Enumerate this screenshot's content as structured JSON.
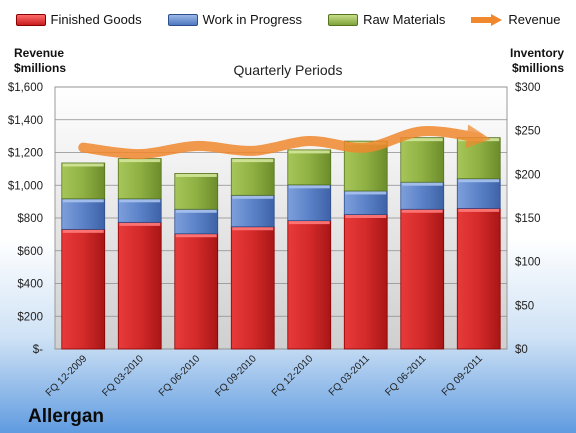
{
  "company": "Allergan",
  "legend": {
    "finished_goods": "Finished Goods",
    "wip": "Work in Progress",
    "raw_materials": "Raw Materials",
    "revenue": "Revenue"
  },
  "labels": {
    "left_line1": "Revenue",
    "left_line2": "$millions",
    "right_line1": "Inventory",
    "right_line2": "$millions",
    "title": "Quarterly Periods"
  },
  "colors": {
    "finished_goods": "#d42a2a",
    "wip": "#5b82c8",
    "raw_materials": "#8fb043",
    "revenue": "#f0882e"
  },
  "chart_data": {
    "type": "bar",
    "stacked": true,
    "categories": [
      "FQ 12-2009",
      "FQ 03-2010",
      "FQ 06-2010",
      "FQ 09-2010",
      "FQ 12-2010",
      "FQ 03-2011",
      "FQ 06-2011",
      "FQ 09-2011"
    ],
    "left_axis": {
      "ticks": [
        "$-",
        "$200",
        "$400",
        "$600",
        "$800",
        "$1,000",
        "$1,200",
        "$1,400",
        "$1,600"
      ],
      "ylim": [
        0,
        1600
      ]
    },
    "right_axis": {
      "ticks": [
        "$0",
        "$50",
        "$100",
        "$150",
        "$200",
        "$250",
        "$300"
      ],
      "ylim": [
        0,
        300
      ]
    },
    "series": [
      {
        "name": "Finished Goods",
        "axis": "right",
        "values": [
          137,
          145,
          132,
          140,
          147,
          154,
          160,
          161
        ]
      },
      {
        "name": "Work in Progress",
        "axis": "right",
        "values": [
          35,
          27,
          28,
          36,
          41,
          27,
          31,
          34
        ]
      },
      {
        "name": "Raw Materials",
        "axis": "right",
        "values": [
          41,
          46,
          41,
          42,
          40,
          57,
          51,
          47
        ]
      },
      {
        "name": "Revenue",
        "axis": "left",
        "type": "line",
        "values": [
          1230,
          1190,
          1240,
          1210,
          1270,
          1230,
          1330,
          1290
        ]
      }
    ],
    "grid": true,
    "legend_position": "top"
  }
}
